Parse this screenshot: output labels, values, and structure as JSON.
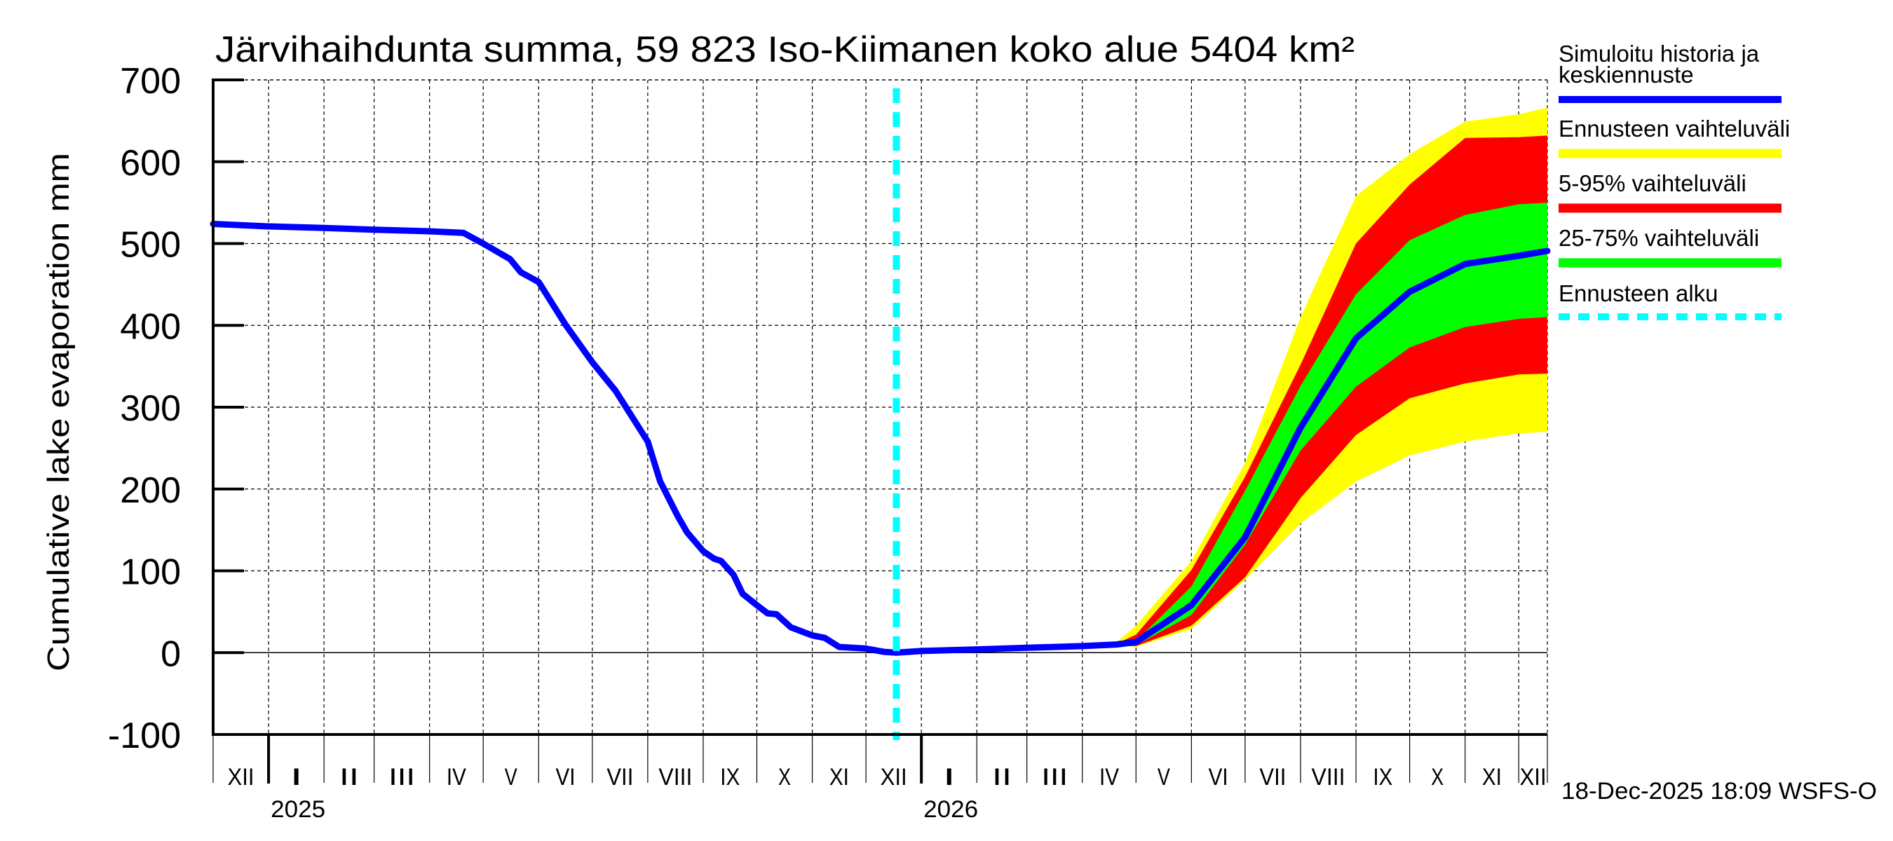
{
  "chart_data": {
    "type": "area",
    "title": "Järvihaihdunta summa, 59 823 Iso-Kiimanen koko alue 5404 km²",
    "xlabel": "",
    "ylabel": "Cumulative lake evaporation   mm",
    "ylim": [
      -100,
      700
    ],
    "yticks": [
      -100,
      0,
      100,
      200,
      300,
      400,
      500,
      600,
      700
    ],
    "xlim": [
      "2024-12-01",
      "2026-12-17"
    ],
    "grid": true,
    "legend_position": "right",
    "month_ticks": [
      {
        "date": "2024-12-01",
        "label": "XII"
      },
      {
        "date": "2025-01-01",
        "label": "I"
      },
      {
        "date": "2025-02-01",
        "label": "II"
      },
      {
        "date": "2025-03-01",
        "label": "III"
      },
      {
        "date": "2025-04-01",
        "label": "IV"
      },
      {
        "date": "2025-05-01",
        "label": "V"
      },
      {
        "date": "2025-06-01",
        "label": "VI"
      },
      {
        "date": "2025-07-01",
        "label": "VII"
      },
      {
        "date": "2025-08-01",
        "label": "VIII"
      },
      {
        "date": "2025-09-01",
        "label": "IX"
      },
      {
        "date": "2025-10-01",
        "label": "X"
      },
      {
        "date": "2025-11-01",
        "label": "XI"
      },
      {
        "date": "2025-12-01",
        "label": "XII"
      },
      {
        "date": "2026-01-01",
        "label": "I"
      },
      {
        "date": "2026-02-01",
        "label": "II"
      },
      {
        "date": "2026-03-01",
        "label": "III"
      },
      {
        "date": "2026-04-01",
        "label": "IV"
      },
      {
        "date": "2026-05-01",
        "label": "V"
      },
      {
        "date": "2026-06-01",
        "label": "VI"
      },
      {
        "date": "2026-07-01",
        "label": "VII"
      },
      {
        "date": "2026-08-01",
        "label": "VIII"
      },
      {
        "date": "2026-09-01",
        "label": "IX"
      },
      {
        "date": "2026-10-01",
        "label": "X"
      },
      {
        "date": "2026-11-01",
        "label": "XI"
      },
      {
        "date": "2026-12-01",
        "label": "XII"
      }
    ],
    "year_ticks": [
      {
        "date": "2025-01-01",
        "label": "2025"
      },
      {
        "date": "2026-01-01",
        "label": "2026"
      }
    ],
    "forecast_start": "2025-12-18",
    "series": [
      {
        "name": "Simuloitu historia ja keskiennuste",
        "color": "#0000ff",
        "points": [
          [
            "2024-12-01",
            524
          ],
          [
            "2025-01-01",
            521
          ],
          [
            "2025-02-01",
            519
          ],
          [
            "2025-03-01",
            517
          ],
          [
            "2025-04-01",
            515
          ],
          [
            "2025-04-20",
            513
          ],
          [
            "2025-05-01",
            500
          ],
          [
            "2025-05-16",
            481
          ],
          [
            "2025-05-22",
            465
          ],
          [
            "2025-06-01",
            453
          ],
          [
            "2025-06-16",
            401
          ],
          [
            "2025-07-01",
            355
          ],
          [
            "2025-07-14",
            320
          ],
          [
            "2025-08-01",
            258
          ],
          [
            "2025-08-08",
            209
          ],
          [
            "2025-08-18",
            166
          ],
          [
            "2025-08-23",
            147
          ],
          [
            "2025-09-01",
            124
          ],
          [
            "2025-09-07",
            115
          ],
          [
            "2025-09-11",
            112
          ],
          [
            "2025-09-18",
            95
          ],
          [
            "2025-09-23",
            72
          ],
          [
            "2025-10-01",
            58
          ],
          [
            "2025-10-07",
            48
          ],
          [
            "2025-10-12",
            47
          ],
          [
            "2025-10-20",
            31
          ],
          [
            "2025-11-01",
            21
          ],
          [
            "2025-11-08",
            18
          ],
          [
            "2025-11-16",
            7
          ],
          [
            "2025-12-01",
            5
          ],
          [
            "2025-12-11",
            1
          ],
          [
            "2025-12-18",
            0
          ],
          [
            "2026-01-01",
            2
          ],
          [
            "2026-02-01",
            4
          ],
          [
            "2026-03-01",
            6
          ],
          [
            "2026-04-01",
            8
          ],
          [
            "2026-04-20",
            10
          ],
          [
            "2026-05-01",
            13
          ],
          [
            "2026-06-01",
            58
          ],
          [
            "2026-07-01",
            141
          ],
          [
            "2026-08-01",
            275
          ],
          [
            "2026-09-01",
            384
          ],
          [
            "2026-10-01",
            441
          ],
          [
            "2026-11-01",
            475
          ],
          [
            "2026-12-01",
            485
          ],
          [
            "2026-12-17",
            491
          ]
        ]
      }
    ],
    "bands": {
      "dates": [
        "2026-04-18",
        "2026-05-01",
        "2026-06-01",
        "2026-07-01",
        "2026-08-01",
        "2026-09-01",
        "2026-10-01",
        "2026-11-01",
        "2026-12-01",
        "2026-12-17"
      ],
      "yellow": {
        "name": "Ennusteen vaihteluväli",
        "color": "#ffff00",
        "low": [
          9,
          7,
          29,
          89,
          158,
          209,
          241,
          258,
          268,
          270
        ],
        "high": [
          9,
          33,
          112,
          232,
          410,
          558,
          609,
          649,
          658,
          666
        ]
      },
      "red": {
        "name": "5-95% vaihteluväli",
        "color": "#ff0000",
        "low": [
          9,
          8,
          33,
          92,
          189,
          266,
          311,
          329,
          340,
          341
        ],
        "high": [
          9,
          22,
          101,
          215,
          352,
          500,
          572,
          629,
          630,
          632
        ]
      },
      "green": {
        "name": "25-75% vaihteluväli",
        "color": "#00ff00",
        "low": [
          9,
          9,
          46,
          132,
          247,
          325,
          373,
          398,
          408,
          410
        ],
        "high": [
          9,
          14,
          81,
          198,
          326,
          438,
          504,
          535,
          548,
          550
        ]
      }
    },
    "legend": [
      {
        "label": "Simuloitu historia ja keskiennuste",
        "color": "#0000ff",
        "style": "line"
      },
      {
        "label": "Ennusteen vaihteluväli",
        "color": "#ffff00",
        "style": "band"
      },
      {
        "label": "5-95% vaihteluväli",
        "color": "#ff0000",
        "style": "band"
      },
      {
        "label": "25-75% vaihteluväli",
        "color": "#00ff00",
        "style": "band"
      },
      {
        "label": "Ennusteen alku",
        "color": "#00ffff",
        "style": "dashed"
      }
    ],
    "footer": "18-Dec-2025 18:09 WSFS-O"
  }
}
